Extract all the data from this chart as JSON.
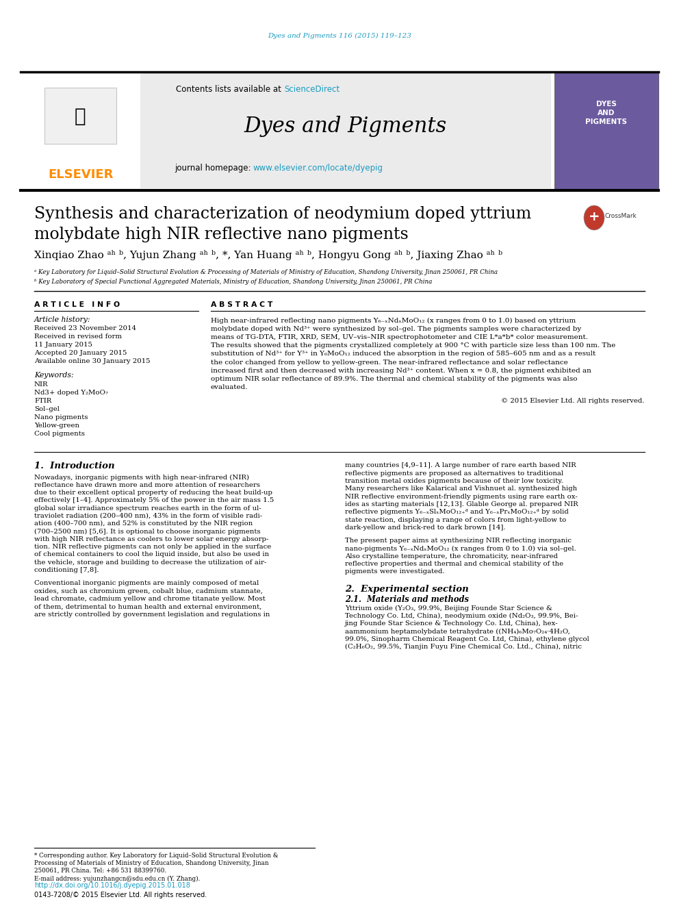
{
  "page_title_journal": "Dyes and Pigments 116 (2015) 119–123",
  "journal_name": "Dyes and Pigments",
  "sciencedirect_color": "#1a9bbf",
  "elsevier_color": "#ff8c00",
  "article_title_line1": "Synthesis and characterization of neodymium doped yttrium",
  "article_title_line2": "molybdate high NIR reflective nano pigments",
  "affil_a": "ᵃ Key Laboratory for Liquid–Solid Structural Evolution & Processing of Materials of Ministry of Education, Shandong University, Jinan 250061, PR China",
  "affil_b": "ᵇ Key Laboratory of Special Functional Aggregated Materials, Ministry of Education, Shandong University, Jinan 250061, PR China",
  "article_info_title": "A R T I C L E   I N F O",
  "article_history_title": "Article history:",
  "received1": "Received 23 November 2014",
  "received2": "Received in revised form",
  "received2b": "11 January 2015",
  "accepted": "Accepted 20 January 2015",
  "available": "Available online 30 January 2015",
  "keywords_title": "Keywords:",
  "kw1": "NIR",
  "kw2": "Nd3+ doped Y₂MoO₇",
  "kw3": "FTIR",
  "kw4": "Sol–gel",
  "kw5": "Nano pigments",
  "kw6": "Yellow-green",
  "kw7": "Cool pigments",
  "abstract_title": "A B S T R A C T",
  "abstract_text": "High near-infrared reflecting nano pigments Y₆₋ₓNdₓMoO₁₂ (x ranges from 0 to 1.0) based on yttrium\nmolybdate doped with Nd³⁺ were synthesized by sol–gel. The pigments samples were characterized by\nmeans of TG-DTA, FTIR, XRD, SEM, UV–vis–NIR spectrophotometer and CIE L*a*b* color measurement.\nThe results showed that the pigments crystallized completely at 900 °C with particle size less than 100 nm. The\nsubstitution of Nd³⁺ for Y³⁺ in Y₆MoO₁₂ induced the absorption in the region of 585–605 nm and as a result\nthe color changed from yellow to yellow-green. The near-infrared reflectance and solar reflectance\nincreased first and then decreased with increasing Nd³⁺ content. When x = 0.8, the pigment exhibited an\noptimum NIR solar reflectance of 89.9%. The thermal and chemical stability of the pigments was also\nevaluated.",
  "copyright": "© 2015 Elsevier Ltd. All rights reserved.",
  "intro_title": "1.  Introduction",
  "intro_text1": "Nowadays, inorganic pigments with high near-infrared (NIR)\nreflectance have drawn more and more attention of researchers\ndue to their excellent optical property of reducing the heat build-up\neffectively [1–4]. Approximately 5% of the power in the air mass 1.5\nglobal solar irradiance spectrum reaches earth in the form of ul-\ntraviolet radiation (200–400 nm), 43% in the form of visible radi-\nation (400–700 nm), and 52% is constituted by the NIR region\n(700–2500 nm) [5,6]. It is optional to choose inorganic pigments\nwith high NIR reflectance as coolers to lower solar energy absorp-\ntion. NIR reflective pigments can not only be applied in the surface\nof chemical containers to cool the liquid inside, but also be used in\nthe vehicle, storage and building to decrease the utilization of air-\nconditioning [7,8].",
  "intro_text2": "Conventional inorganic pigments are mainly composed of metal\noxides, such as chromium green, cobalt blue, cadmium stannate,\nlead chromate, cadmium yellow and chrome titanate yellow. Most\nof them, detrimental to human health and external environment,\nare strictly controlled by government legislation and regulations in",
  "right_col_text1": "many countries [4,9–11]. A large number of rare earth based NIR\nreflective pigments are proposed as alternatives to traditional\ntransition metal oxides pigments because of their low toxicity.\nMany researchers like Kalarical and Vishnuet al. synthesized high\nNIR reflective environment-friendly pigments using rare earth ox-\nides as starting materials [12,13]. Glable George al. prepared NIR\nreflective pigments Y₆₋ₓSlₓMoO₁₂₊ᵈ and Y₆₋ₓPrₓMoO₁₂₊ᵈ by solid\nstate reaction, displaying a range of colors from light-yellow to\ndark-yellow and brick-red to dark brown [14].",
  "right_col_text2": "The present paper aims at synthesizing NIR reflecting inorganic\nnano-pigments Y₆₋ₓNdₓMoO₁₂ (x ranges from 0 to 1.0) via sol–gel.\nAlso crystalline temperature, the chromaticity, near-infrared\nreflective properties and thermal and chemical stability of the\npigments were investigated.",
  "exp_title": "2.  Experimental section",
  "exp_sub": "2.1.  Materials and methods",
  "exp_text": "Yttrium oxide (Y₂O₃, 99.9%, Beijing Founde Star Science &\nTechnology Co. Ltd, China), neodymium oxide (Nd₂O₃, 99.9%, Bei-\njing Founde Star Science & Technology Co. Ltd, China), hex-\naammonium heptamolybdate tetrahydrate ((NH₄)₆Mo₇O₂₄·4H₂O,\n99.0%, Sinopharm Chemical Reagent Co. Ltd, China), ethylene glycol\n(C₂H₆O₂, 99.5%, Tianjin Fuyu Fine Chemical Co. Ltd., China), nitric",
  "footnote_star": "* Corresponding author. Key Laboratory for Liquid–Solid Structural Evolution &\nProcessing of Materials of Ministry of Education, Shandong University, Jinan\n250061, PR China. Tel: +86 531 88399760.",
  "footnote_email": "E-mail address: yujunzhangcn@sdu.edu.cn (Y. Zhang).",
  "doi_text": "http://dx.doi.org/10.1016/j.dyepig.2015.01.018",
  "issn_text": "0143-7208/© 2015 Elsevier Ltd. All rights reserved.",
  "bg_color": "#ffffff"
}
